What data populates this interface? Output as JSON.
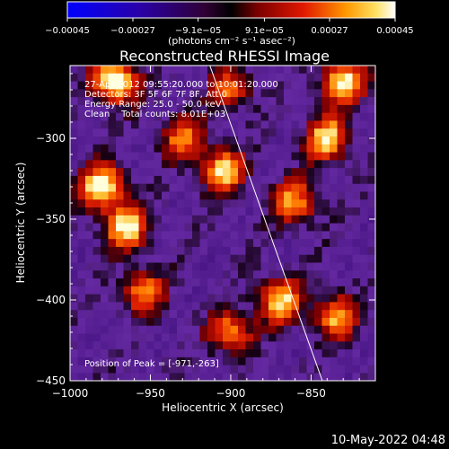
{
  "chart_data": {
    "type": "heatmap",
    "title": "Reconstructed RHESSI Image",
    "xlabel": "Heliocentric X (arcsec)",
    "ylabel": "Heliocentric Y (arcsec)",
    "xlim": [
      -1000,
      -810
    ],
    "ylim": [
      -450,
      -255
    ],
    "xticks": [
      -1000,
      -950,
      -900,
      -850
    ],
    "xtick_labels": [
      "−1000",
      "−950",
      "−900",
      "−850"
    ],
    "yticks": [
      -450,
      -400,
      -350,
      -300
    ],
    "ytick_labels": [
      "−450",
      "−400",
      "−350",
      "−300"
    ],
    "colorbar": {
      "min": -0.00045,
      "max": 0.00045,
      "ticks": [
        -0.00045,
        -0.00027,
        -9.1e-05,
        9.1e-05,
        0.00027,
        0.00045
      ],
      "tick_labels": [
        "−0.00045",
        "−0.00027",
        "−9.1e−05",
        "9.1e−05",
        "0.00027",
        "0.00045"
      ],
      "unit_label": "(photons cm⁻² s⁻¹ asec⁻²)",
      "colormap": "blue-purple-red-yellow-white"
    },
    "annotations": [
      "27-Apr-2012 09:55:20.000 to 10:01:20.000",
      "Detectors: 3F 5F 6F 7F 8F, Att 0",
      "Energy Range: 25.0 - 50.0 keV",
      "Clean    Total counts: 8.01E+03"
    ],
    "peak_label": "Position of Peak = [-971,-263]",
    "limb_line": [
      [
        -913,
        -255
      ],
      [
        -843,
        -450
      ]
    ],
    "bright_regions": [
      {
        "x": -980,
        "y": -330,
        "level": 0.95
      },
      {
        "x": -965,
        "y": -355,
        "level": 0.85
      },
      {
        "x": -972,
        "y": -265,
        "level": 1.0
      },
      {
        "x": -905,
        "y": -320,
        "level": 0.8
      },
      {
        "x": -860,
        "y": -340,
        "level": 0.7
      },
      {
        "x": -840,
        "y": -300,
        "level": 0.8
      },
      {
        "x": -830,
        "y": -265,
        "level": 0.9
      },
      {
        "x": -930,
        "y": -300,
        "level": 0.6
      },
      {
        "x": -955,
        "y": -395,
        "level": 0.65
      },
      {
        "x": -900,
        "y": -420,
        "level": 0.7
      },
      {
        "x": -870,
        "y": -400,
        "level": 0.8
      },
      {
        "x": -835,
        "y": -410,
        "level": 0.7
      },
      {
        "x": -900,
        "y": -270,
        "level": 0.55
      }
    ]
  },
  "timestamp": "10-May-2022 04:48"
}
